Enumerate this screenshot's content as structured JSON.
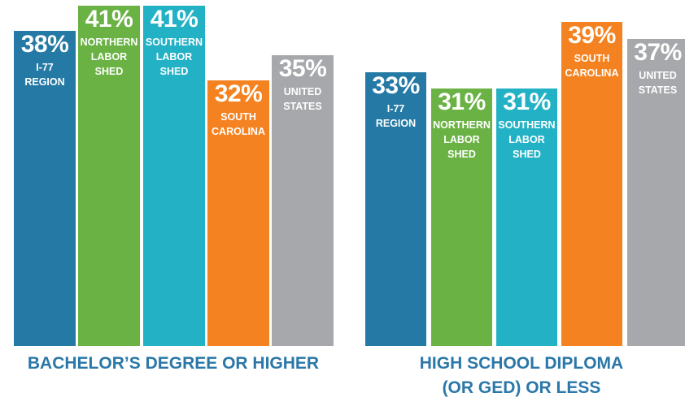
{
  "colors": {
    "i77_region": "#2479a5",
    "northern_labor_shed": "#6ab244",
    "southern_labor_shed": "#23b2c5",
    "south_carolina": "#f58220",
    "united_states": "#a6a8ab",
    "title": "#2a77a8"
  },
  "chart_data": [
    {
      "type": "bar",
      "title": "BACHELOR’S DEGREE OR HIGHER",
      "categories": [
        "I-77 REGION",
        "NORTHERN LABOR SHED",
        "SOUTHERN LABOR SHED",
        "SOUTH CAROLINA",
        "UNITED STATES"
      ],
      "values": [
        38,
        41,
        41,
        32,
        35
      ],
      "labels": [
        "38%",
        "41%",
        "41%",
        "32%",
        "35%"
      ]
    },
    {
      "type": "bar",
      "title": "HIGH SCHOOL DIPLOMA (OR GED) OR LESS",
      "categories": [
        "I-77 REGION",
        "NORTHERN LABOR SHED",
        "SOUTHERN LABOR SHED",
        "SOUTH CAROLINA",
        "UNITED STATES"
      ],
      "values": [
        33,
        31,
        31,
        39,
        37
      ],
      "labels": [
        "33%",
        "31%",
        "31%",
        "39%",
        "37%"
      ]
    }
  ],
  "titles": {
    "left_line1": "BACHELOR’S DEGREE OR HIGHER",
    "right_line1": "HIGH SCHOOL DIPLOMA",
    "right_line2": "(OR GED) OR LESS"
  }
}
